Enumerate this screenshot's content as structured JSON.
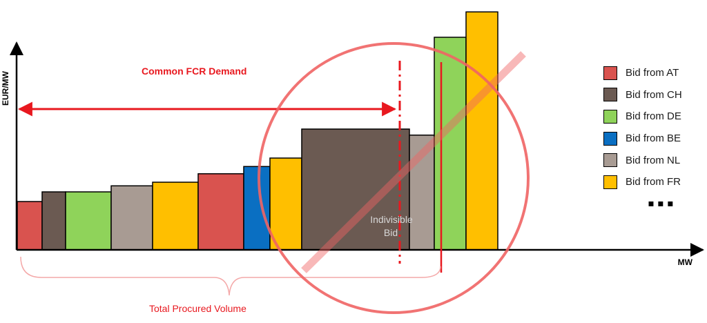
{
  "chart_data": {
    "type": "bar",
    "xlabel": "MW",
    "ylabel": "EUR/MW",
    "bars": [
      {
        "source": "AT",
        "volume": 3.6,
        "price": 4.0
      },
      {
        "source": "CH",
        "volume": 3.4,
        "price": 4.8
      },
      {
        "source": "DE",
        "volume": 6.6,
        "price": 4.8
      },
      {
        "source": "NL",
        "volume": 6.0,
        "price": 5.3
      },
      {
        "source": "FR",
        "volume": 6.6,
        "price": 5.6
      },
      {
        "source": "AT",
        "volume": 6.6,
        "price": 6.3
      },
      {
        "source": "BE",
        "volume": 3.8,
        "price": 6.9
      },
      {
        "source": "FR",
        "volume": 4.6,
        "price": 7.6
      },
      {
        "source": "CH",
        "volume": 15.6,
        "price": 10.0
      },
      {
        "source": "NL",
        "volume": 3.6,
        "price": 9.5
      },
      {
        "source": "DE",
        "volume": 4.6,
        "price": 17.6
      },
      {
        "source": "FR",
        "volume": 4.6,
        "price": 19.7
      }
    ],
    "demand_volume": 50.6,
    "procured_volume": 56.6,
    "indivisible_bar_index": 8,
    "legend": [
      {
        "label": "Bid from AT",
        "source": "AT"
      },
      {
        "label": "Bid from CH",
        "source": "CH"
      },
      {
        "label": "Bid from DE",
        "source": "DE"
      },
      {
        "label": "Bid from BE",
        "source": "BE"
      },
      {
        "label": "Bid from NL",
        "source": "NL"
      },
      {
        "label": "Bid from FR",
        "source": "FR"
      }
    ],
    "legend_more": "▪▪▪",
    "annotations": {
      "demand_label": "Common FCR Demand",
      "procured_label": "Total  Procured Volume",
      "indivisible_label_line1": "Indivisible",
      "indivisible_label_line2": "Bid"
    },
    "colors": {
      "AT": "#d9534f",
      "CH": "#6b5a52",
      "DE": "#8fd35a",
      "BE": "#0a6fc2",
      "NL": "#a89b93",
      "FR": "#ffbf00",
      "annotation": "#e8181f",
      "no_symbol": "#f06464"
    }
  }
}
